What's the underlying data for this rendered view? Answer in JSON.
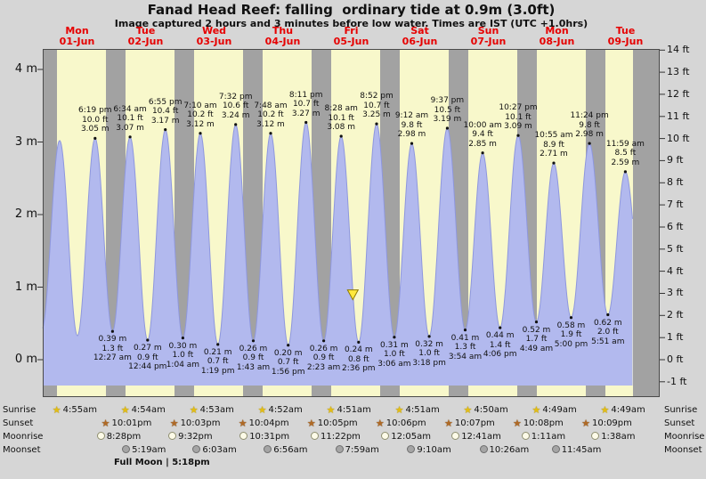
{
  "title": "Fanad Head Reef: falling  ordinary tide at 0.9m (3.0ft)",
  "subtitle": "Image captured 2 hours and 3 minutes before low water. Times are IST (UTC +1.0hrs)",
  "colors": {
    "background": "#d6d6d6",
    "night_band": "#a2a2a2",
    "day_band": "#f8f8cb",
    "tide_fill": "#b2b9ee",
    "tide_edge": "#8e97de",
    "day_label_red": "#e60000",
    "marker_fill": "#ffe93c",
    "marker_edge": "#8f7a00"
  },
  "days": [
    {
      "name": "Mon",
      "date": "01-Jun"
    },
    {
      "name": "Tue",
      "date": "02-Jun"
    },
    {
      "name": "Wed",
      "date": "03-Jun"
    },
    {
      "name": "Thu",
      "date": "04-Jun"
    },
    {
      "name": "Fri",
      "date": "05-Jun"
    },
    {
      "name": "Sat",
      "date": "06-Jun"
    },
    {
      "name": "Sun",
      "date": "07-Jun"
    },
    {
      "name": "Mon",
      "date": "08-Jun"
    },
    {
      "name": "Tue",
      "date": "09-Jun"
    }
  ],
  "y_axis": {
    "left_labels": [
      "4 m",
      "3 m",
      "2 m",
      "1 m",
      "0 m"
    ],
    "right_labels": [
      "14 ft",
      "13 ft",
      "12 ft",
      "11 ft",
      "10 ft",
      "9 ft",
      "8 ft",
      "7 ft",
      "6 ft",
      "5 ft",
      "4 ft",
      "3 ft",
      "2 ft",
      "1 ft",
      "0 ft",
      "-1 ft"
    ]
  },
  "chart_data": {
    "type": "area",
    "title": "Tide height over 9 days, Mon 01-Jun to Tue 09-Jun",
    "x_unit": "hours from Mon 01-Jun 00:00",
    "y_unit": "meters",
    "ylim": [
      -0.5,
      4.28
    ],
    "data_end_t": 206.5,
    "marker": {
      "t": 108.55,
      "h": 0.9,
      "meaning": "current tide level 0.9m"
    },
    "extremes": [
      {
        "t": -0.3,
        "h": 0.42,
        "type": "low",
        "lines": null
      },
      {
        "t": 5.92,
        "h": 3.02,
        "type": "high",
        "lines": null
      },
      {
        "t": 12.15,
        "h": 0.33,
        "type": "low",
        "lines": null
      },
      {
        "t": 18.32,
        "h": 3.05,
        "type": "high",
        "lines": [
          "6:19 pm",
          "10.0 ft",
          "3.05 m"
        ]
      },
      {
        "t": 24.45,
        "h": 0.39,
        "type": "low",
        "lines": [
          "0.39 m",
          "1.3 ft",
          "12:27 am"
        ]
      },
      {
        "t": 30.57,
        "h": 3.07,
        "type": "high",
        "lines": [
          "6:34 am",
          "10.1 ft",
          "3.07 m"
        ]
      },
      {
        "t": 36.73,
        "h": 0.27,
        "type": "low",
        "lines": [
          "0.27 m",
          "0.9 ft",
          "12:44 pm"
        ]
      },
      {
        "t": 42.92,
        "h": 3.17,
        "type": "high",
        "lines": [
          "6:55 pm",
          "10.4 ft",
          "3.17 m"
        ]
      },
      {
        "t": 49.07,
        "h": 0.3,
        "type": "low",
        "lines": [
          "0.30 m",
          "1.0 ft",
          "1:04 am"
        ]
      },
      {
        "t": 55.17,
        "h": 3.12,
        "type": "high",
        "lines": [
          "7:10 am",
          "10.2 ft",
          "3.12 m"
        ]
      },
      {
        "t": 61.32,
        "h": 0.21,
        "type": "low",
        "lines": [
          "0.21 m",
          "0.7 ft",
          "1:19 pm"
        ]
      },
      {
        "t": 67.53,
        "h": 3.24,
        "type": "high",
        "lines": [
          "7:32 pm",
          "10.6 ft",
          "3.24 m"
        ]
      },
      {
        "t": 73.72,
        "h": 0.26,
        "type": "low",
        "lines": [
          "0.26 m",
          "0.9 ft",
          "1:43 am"
        ]
      },
      {
        "t": 79.8,
        "h": 3.12,
        "type": "high",
        "lines": [
          "7:48 am",
          "10.2 ft",
          "3.12 m"
        ]
      },
      {
        "t": 85.93,
        "h": 0.2,
        "type": "low",
        "lines": [
          "0.20 m",
          "0.7 ft",
          "1:56 pm"
        ]
      },
      {
        "t": 92.18,
        "h": 3.27,
        "type": "high",
        "lines": [
          "8:11 pm",
          "10.7 ft",
          "3.27 m"
        ]
      },
      {
        "t": 98.38,
        "h": 0.26,
        "type": "low",
        "lines": [
          "0.26 m",
          "0.9 ft",
          "2:23 am"
        ]
      },
      {
        "t": 104.47,
        "h": 3.08,
        "type": "high",
        "lines": [
          "8:28 am",
          "10.1 ft",
          "3.08 m"
        ]
      },
      {
        "t": 110.6,
        "h": 0.24,
        "type": "low",
        "lines": [
          "0.24 m",
          "0.8 ft",
          "2:36 pm"
        ]
      },
      {
        "t": 116.87,
        "h": 3.25,
        "type": "high",
        "lines": [
          "8:52 pm",
          "10.7 ft",
          "3.25 m"
        ]
      },
      {
        "t": 123.1,
        "h": 0.31,
        "type": "low",
        "lines": [
          "0.31 m",
          "1.0 ft",
          "3:06 am"
        ]
      },
      {
        "t": 129.2,
        "h": 2.98,
        "type": "high",
        "lines": [
          "9:12 am",
          "9.8 ft",
          "2.98 m"
        ]
      },
      {
        "t": 135.3,
        "h": 0.32,
        "type": "low",
        "lines": [
          "0.32 m",
          "1.0 ft",
          "3:18 pm"
        ]
      },
      {
        "t": 141.62,
        "h": 3.19,
        "type": "high",
        "lines": [
          "9:37 pm",
          "10.5 ft",
          "3.19 m"
        ]
      },
      {
        "t": 147.9,
        "h": 0.41,
        "type": "low",
        "lines": [
          "0.41 m",
          "1.3 ft",
          "3:54 am"
        ]
      },
      {
        "t": 154.0,
        "h": 2.85,
        "type": "high",
        "lines": [
          "10:00 am",
          "9.4 ft",
          "2.85 m"
        ]
      },
      {
        "t": 160.1,
        "h": 0.44,
        "type": "low",
        "lines": [
          "0.44 m",
          "1.4 ft",
          "4:06 pm"
        ]
      },
      {
        "t": 166.45,
        "h": 3.09,
        "type": "high",
        "lines": [
          "10:27 pm",
          "10.1 ft",
          "3.09 m"
        ]
      },
      {
        "t": 172.82,
        "h": 0.52,
        "type": "low",
        "lines": [
          "0.52 m",
          "1.7 ft",
          "4:49 am"
        ]
      },
      {
        "t": 178.92,
        "h": 2.71,
        "type": "high",
        "lines": [
          "10:55 am",
          "8.9 ft",
          "2.71 m"
        ]
      },
      {
        "t": 185.0,
        "h": 0.58,
        "type": "low",
        "lines": [
          "0.58 m",
          "1.9 ft",
          "5:00 pm"
        ]
      },
      {
        "t": 191.4,
        "h": 2.98,
        "type": "high",
        "lines": [
          "11:24 pm",
          "9.8 ft",
          "2.98 m"
        ]
      },
      {
        "t": 197.85,
        "h": 0.62,
        "type": "low",
        "lines": [
          "0.62 m",
          "2.0 ft",
          "5:51 am"
        ]
      },
      {
        "t": 203.98,
        "h": 2.59,
        "type": "high",
        "lines": [
          "11:59 am",
          "8.5 ft",
          "2.59 m"
        ]
      },
      {
        "t": 210.3,
        "h": 0.7,
        "type": "low",
        "lines": null
      }
    ]
  },
  "astro": {
    "rows": [
      {
        "id": "sunrise",
        "label": "Sunrise",
        "entries": [
          {
            "day": 0,
            "time": "4:55am"
          },
          {
            "day": 1,
            "time": "4:54am"
          },
          {
            "day": 2,
            "time": "4:53am"
          },
          {
            "day": 3,
            "time": "4:52am"
          },
          {
            "day": 4,
            "time": "4:51am"
          },
          {
            "day": 5,
            "time": "4:51am"
          },
          {
            "day": 6,
            "time": "4:50am"
          },
          {
            "day": 7,
            "time": "4:49am"
          },
          {
            "day": 8,
            "time": "4:49am"
          }
        ]
      },
      {
        "id": "sunset",
        "label": "Sunset",
        "entries": [
          {
            "day": 0,
            "time": "10:01pm"
          },
          {
            "day": 1,
            "time": "10:03pm"
          },
          {
            "day": 2,
            "time": "10:04pm"
          },
          {
            "day": 3,
            "time": "10:05pm"
          },
          {
            "day": 4,
            "time": "10:06pm"
          },
          {
            "day": 5,
            "time": "10:07pm"
          },
          {
            "day": 6,
            "time": "10:08pm"
          },
          {
            "day": 7,
            "time": "10:09pm"
          }
        ]
      },
      {
        "id": "moonrise",
        "label": "Moonrise",
        "entries": [
          {
            "day": 0,
            "time": "8:28pm"
          },
          {
            "day": 1,
            "time": "9:32pm"
          },
          {
            "day": 2,
            "time": "10:31pm"
          },
          {
            "day": 3,
            "time": "11:22pm"
          },
          {
            "day": 5,
            "time": "12:05am"
          },
          {
            "day": 6,
            "time": "12:41am"
          },
          {
            "day": 7,
            "time": "1:11am"
          },
          {
            "day": 8,
            "time": "1:38am"
          }
        ]
      },
      {
        "id": "moonset",
        "label": "Moonset",
        "entries": [
          {
            "day": 1,
            "time": "5:19am"
          },
          {
            "day": 2,
            "time": "6:03am"
          },
          {
            "day": 3,
            "time": "6:56am"
          },
          {
            "day": 4,
            "time": "7:59am"
          },
          {
            "day": 5,
            "time": "9:10am"
          },
          {
            "day": 6,
            "time": "10:26am"
          },
          {
            "day": 7,
            "time": "11:45am"
          }
        ]
      }
    ],
    "full_moon_text": "Full Moon | 5:18pm"
  }
}
